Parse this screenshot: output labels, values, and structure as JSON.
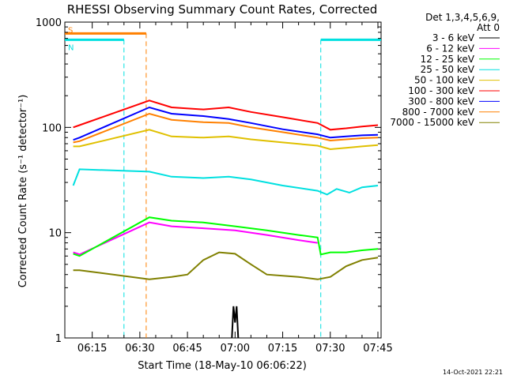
{
  "chart_data": {
    "type": "line",
    "title": "RHESSI Observing Summary Count Rates, Corrected",
    "xlabel": "Start Time (18-May-10 06:06:22)",
    "ylabel": "Corrected Count Rate (s⁻¹ detector⁻¹)",
    "y_scale": "log",
    "ylim": [
      1,
      1000
    ],
    "xlim": [
      "06:06:22",
      "07:46:00"
    ],
    "x_ticks": [
      "06:15",
      "06:30",
      "06:45",
      "07:00",
      "07:15",
      "07:30",
      "07:45"
    ],
    "y_ticks": [
      "1",
      "10",
      "100",
      "1000"
    ],
    "legend": {
      "title_lines": [
        "Det 1,3,4,5,6,9,",
        "Att 0"
      ],
      "placement": "right-outside"
    },
    "timestamp": "14-Oct-2021 22:21",
    "flags": [
      {
        "label": "S",
        "color": "#ff8000",
        "start": "06:06:22",
        "end": "06:32:00",
        "bar_level": 780
      },
      {
        "label": "N",
        "color": "#00e0e0",
        "start": "06:06:22",
        "end": "06:25:00",
        "bar_level": 680
      },
      {
        "label": "",
        "color": "#00e0e0",
        "start": "07:27:00",
        "end": "07:46:00",
        "bar_level": 680
      }
    ],
    "series": [
      {
        "name": "3 - 6 keV",
        "color": "#000000",
        "data": [
          [
            "06:59:00",
            1
          ],
          [
            "06:59:30",
            2.0
          ],
          [
            "07:00:00",
            1.4
          ],
          [
            "07:00:30",
            2.0
          ],
          [
            "07:01:00",
            1
          ]
        ]
      },
      {
        "name": "6 - 12 keV",
        "color": "#ff00ff",
        "data": [
          [
            "06:09:00",
            6.5
          ],
          [
            "06:10:30",
            6.3
          ],
          [
            "06:11:00",
            6.2
          ],
          [
            "06:33:00",
            12.5
          ],
          [
            "06:40:00",
            11.5
          ],
          [
            "06:50:00",
            11.0
          ],
          [
            "07:00:00",
            10.5
          ],
          [
            "07:10:00",
            9.5
          ],
          [
            "07:20:00",
            8.5
          ],
          [
            "07:26:00",
            8.0
          ]
        ]
      },
      {
        "name": "12 - 25 keV",
        "color": "#00ff00",
        "data": [
          [
            "06:09:00",
            6.3
          ],
          [
            "06:11:00",
            6.0
          ],
          [
            "06:33:00",
            14.0
          ],
          [
            "06:40:00",
            13.0
          ],
          [
            "06:50:00",
            12.5
          ],
          [
            "07:00:00",
            11.5
          ],
          [
            "07:10:00",
            10.5
          ],
          [
            "07:20:00",
            9.5
          ],
          [
            "07:26:00",
            9.0
          ],
          [
            "07:27:00",
            6.2
          ],
          [
            "07:30:00",
            6.5
          ],
          [
            "07:35:00",
            6.5
          ],
          [
            "07:40:00",
            6.8
          ],
          [
            "07:45:00",
            7.0
          ]
        ]
      },
      {
        "name": "25 - 50 keV",
        "color": "#00e0e0",
        "data": [
          [
            "06:09:00",
            28
          ],
          [
            "06:11:00",
            40
          ],
          [
            "06:33:00",
            38
          ],
          [
            "06:40:00",
            34
          ],
          [
            "06:50:00",
            33
          ],
          [
            "06:58:00",
            34
          ],
          [
            "07:05:00",
            32
          ],
          [
            "07:15:00",
            28
          ],
          [
            "07:26:00",
            25
          ],
          [
            "07:29:00",
            23
          ],
          [
            "07:32:00",
            26
          ],
          [
            "07:36:00",
            24
          ],
          [
            "07:40:00",
            27
          ],
          [
            "07:45:00",
            28
          ]
        ]
      },
      {
        "name": "50 - 100 keV",
        "color": "#e0c000",
        "data": [
          [
            "06:09:00",
            66
          ],
          [
            "06:11:00",
            66
          ],
          [
            "06:33:00",
            95
          ],
          [
            "06:40:00",
            82
          ],
          [
            "06:50:00",
            80
          ],
          [
            "06:58:00",
            82
          ],
          [
            "07:05:00",
            77
          ],
          [
            "07:15:00",
            72
          ],
          [
            "07:26:00",
            67
          ],
          [
            "07:30:00",
            62
          ],
          [
            "07:35:00",
            64
          ],
          [
            "07:40:00",
            66
          ],
          [
            "07:45:00",
            68
          ]
        ]
      },
      {
        "name": "100 - 300 keV",
        "color": "#ff0000",
        "data": [
          [
            "06:09:00",
            100
          ],
          [
            "06:11:00",
            105
          ],
          [
            "06:33:00",
            180
          ],
          [
            "06:40:00",
            155
          ],
          [
            "06:50:00",
            148
          ],
          [
            "06:58:00",
            155
          ],
          [
            "07:05:00",
            140
          ],
          [
            "07:15:00",
            125
          ],
          [
            "07:26:00",
            110
          ],
          [
            "07:30:00",
            95
          ],
          [
            "07:35:00",
            98
          ],
          [
            "07:40:00",
            102
          ],
          [
            "07:45:00",
            105
          ]
        ]
      },
      {
        "name": "300 - 800 keV",
        "color": "#0000ff",
        "data": [
          [
            "06:09:00",
            76
          ],
          [
            "06:11:00",
            80
          ],
          [
            "06:33:00",
            155
          ],
          [
            "06:40:00",
            135
          ],
          [
            "06:50:00",
            128
          ],
          [
            "06:58:00",
            120
          ],
          [
            "07:05:00",
            110
          ],
          [
            "07:15:00",
            96
          ],
          [
            "07:26:00",
            86
          ],
          [
            "07:30:00",
            80
          ],
          [
            "07:35:00",
            82
          ],
          [
            "07:40:00",
            84
          ],
          [
            "07:45:00",
            85
          ]
        ]
      },
      {
        "name": "800 - 7000 keV",
        "color": "#ff8000",
        "data": [
          [
            "06:09:00",
            72
          ],
          [
            "06:11:00",
            74
          ],
          [
            "06:33:00",
            135
          ],
          [
            "06:40:00",
            118
          ],
          [
            "06:50:00",
            112
          ],
          [
            "06:58:00",
            110
          ],
          [
            "07:05:00",
            100
          ],
          [
            "07:15:00",
            90
          ],
          [
            "07:26:00",
            80
          ],
          [
            "07:30:00",
            75
          ],
          [
            "07:35:00",
            77
          ],
          [
            "07:40:00",
            79
          ],
          [
            "07:45:00",
            80
          ]
        ]
      },
      {
        "name": "7000 - 15000 keV",
        "color": "#808000",
        "data": [
          [
            "06:09:00",
            4.4
          ],
          [
            "06:11:00",
            4.4
          ],
          [
            "06:33:00",
            3.6
          ],
          [
            "06:40:00",
            3.8
          ],
          [
            "06:45:00",
            4.0
          ],
          [
            "06:50:00",
            5.5
          ],
          [
            "06:55:00",
            6.5
          ],
          [
            "07:00:00",
            6.3
          ],
          [
            "07:05:00",
            5.0
          ],
          [
            "07:10:00",
            4.0
          ],
          [
            "07:20:00",
            3.8
          ],
          [
            "07:26:00",
            3.6
          ],
          [
            "07:30:00",
            3.8
          ],
          [
            "07:35:00",
            4.8
          ],
          [
            "07:40:00",
            5.5
          ],
          [
            "07:45:00",
            5.8
          ]
        ]
      }
    ]
  }
}
